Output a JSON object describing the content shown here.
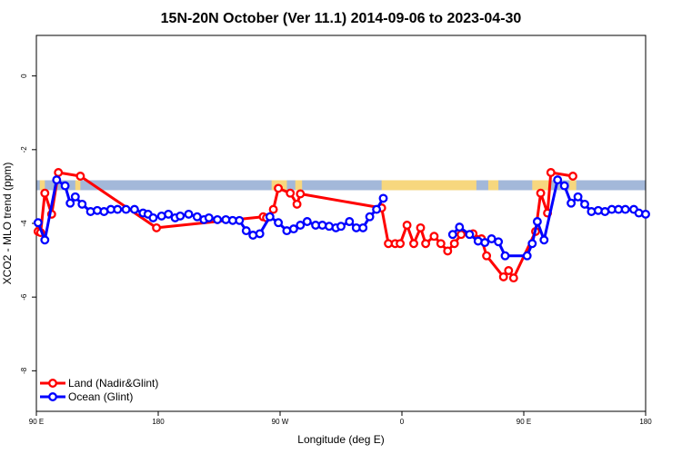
{
  "chart_data": {
    "type": "line",
    "title": "15N-20N October (Ver 11.1)   2014-09-06 to 2023-04-30",
    "xlabel": "Longitude (deg E)",
    "ylabel": "XCO2 - MLO trend (ppm)",
    "xlim": [
      90,
      450
    ],
    "ylim": [
      -9.1,
      1.1
    ],
    "x_ticks": [
      {
        "value": 90,
        "label": "90 E"
      },
      {
        "value": 162,
        "label": "180"
      },
      {
        "value": 234,
        "label": "90 W"
      },
      {
        "value": 306,
        "label": "0"
      },
      {
        "value": 378,
        "label": "90 E"
      },
      {
        "value": 450,
        "label": "180"
      }
    ],
    "y_ticks": [
      {
        "value": 0,
        "label": "0"
      },
      {
        "value": -2,
        "label": "-2"
      },
      {
        "value": -4,
        "label": "-4"
      },
      {
        "value": -6,
        "label": "-6"
      },
      {
        "value": -8,
        "label": "-8"
      }
    ],
    "grid": false,
    "legend_position": "bottom-left",
    "land_ocean_band": {
      "y_top": -2.83,
      "y_bottom": -3.1,
      "ocean_color": "#a3b8d9",
      "land_color": "#f7d77e",
      "land_segments": [
        [
          92,
          95
        ],
        [
          113,
          116
        ],
        [
          229,
          238
        ],
        [
          243,
          247
        ],
        [
          294,
          350
        ],
        [
          357,
          363
        ],
        [
          383,
          393
        ],
        [
          405,
          409
        ]
      ]
    },
    "series": [
      {
        "name": "Land (Nadir&Glint)",
        "color": "#ff0000",
        "points": [
          [
            91,
            -4.22
          ],
          [
            92.5,
            -4.25
          ],
          [
            95,
            -3.18
          ],
          [
            99,
            -3.75
          ],
          [
            103,
            -2.62
          ],
          [
            116,
            -2.72
          ],
          [
            161,
            -4.12
          ],
          [
            224,
            -3.82
          ],
          [
            226,
            -3.85
          ],
          [
            230,
            -3.62
          ],
          [
            233,
            -3.05
          ],
          [
            240,
            -3.18
          ],
          [
            244,
            -3.48
          ],
          [
            246,
            -3.2
          ],
          [
            294,
            -3.58
          ],
          [
            298,
            -4.55
          ],
          [
            302,
            -4.55
          ],
          [
            305,
            -4.55
          ],
          [
            309,
            -4.05
          ],
          [
            313,
            -4.55
          ],
          [
            317,
            -4.12
          ],
          [
            320,
            -4.55
          ],
          [
            325,
            -4.35
          ],
          [
            329,
            -4.55
          ],
          [
            333,
            -4.75
          ],
          [
            337,
            -4.55
          ],
          [
            341,
            -4.3
          ],
          [
            348,
            -4.28
          ],
          [
            353,
            -4.42
          ],
          [
            356,
            -4.88
          ],
          [
            366,
            -5.45
          ],
          [
            369,
            -5.28
          ],
          [
            372,
            -5.48
          ],
          [
            385,
            -4.22
          ],
          [
            388,
            -3.18
          ],
          [
            392,
            -3.72
          ],
          [
            394,
            -2.62
          ],
          [
            407,
            -2.72
          ]
        ]
      },
      {
        "name": "Ocean (Glint)",
        "color": "#0000ff",
        "points": [
          [
            91,
            -3.98
          ],
          [
            95,
            -4.45
          ],
          [
            102,
            -2.82
          ],
          [
            107,
            -2.98
          ],
          [
            110,
            -3.45
          ],
          [
            113,
            -3.28
          ],
          [
            117,
            -3.48
          ],
          [
            122,
            -3.68
          ],
          [
            126,
            -3.65
          ],
          [
            130,
            -3.68
          ],
          [
            134,
            -3.62
          ],
          [
            138,
            -3.62
          ],
          [
            143,
            -3.62
          ],
          [
            148,
            -3.62
          ],
          [
            153,
            -3.72
          ],
          [
            156,
            -3.75
          ],
          [
            159,
            -3.85
          ],
          [
            164,
            -3.8
          ],
          [
            168,
            -3.75
          ],
          [
            172,
            -3.85
          ],
          [
            175,
            -3.8
          ],
          [
            180,
            -3.75
          ],
          [
            185,
            -3.82
          ],
          [
            189,
            -3.9
          ],
          [
            192,
            -3.85
          ],
          [
            197,
            -3.9
          ],
          [
            202,
            -3.9
          ],
          [
            206,
            -3.92
          ],
          [
            210,
            -3.92
          ],
          [
            214,
            -4.2
          ],
          [
            218,
            -4.32
          ],
          [
            222,
            -4.28
          ],
          [
            228,
            -3.82
          ],
          [
            233,
            -3.98
          ],
          [
            238,
            -4.2
          ],
          [
            242,
            -4.15
          ],
          [
            246,
            -4.05
          ],
          [
            250,
            -3.95
          ],
          [
            255,
            -4.05
          ],
          [
            259,
            -4.05
          ],
          [
            263,
            -4.08
          ],
          [
            267,
            -4.12
          ],
          [
            270,
            -4.08
          ],
          [
            275,
            -3.95
          ],
          [
            279,
            -4.12
          ],
          [
            283,
            -4.12
          ],
          [
            287,
            -3.82
          ],
          [
            291,
            -3.62
          ],
          [
            295,
            -3.32
          ],
          [
            336,
            -4.3
          ],
          [
            340,
            -4.1
          ],
          [
            346,
            -4.3
          ],
          [
            351,
            -4.48
          ],
          [
            355,
            -4.52
          ],
          [
            359,
            -4.42
          ],
          [
            363,
            -4.5
          ],
          [
            367,
            -4.88
          ],
          [
            380,
            -4.88
          ],
          [
            383,
            -4.55
          ],
          [
            386,
            -3.95
          ],
          [
            390,
            -4.45
          ],
          [
            398,
            -2.82
          ],
          [
            402,
            -2.98
          ],
          [
            406,
            -3.45
          ],
          [
            410,
            -3.28
          ],
          [
            414,
            -3.48
          ],
          [
            418,
            -3.68
          ],
          [
            422,
            -3.65
          ],
          [
            426,
            -3.68
          ],
          [
            430,
            -3.62
          ],
          [
            434,
            -3.62
          ],
          [
            438,
            -3.62
          ],
          [
            443,
            -3.62
          ],
          [
            446,
            -3.72
          ],
          [
            450,
            -3.75
          ]
        ],
        "gap_after_x": [
          295
        ]
      }
    ]
  }
}
